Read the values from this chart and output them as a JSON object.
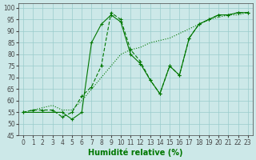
{
  "series1": {
    "x": [
      0,
      1,
      2,
      3,
      4,
      5,
      6,
      7,
      8,
      9,
      10,
      11,
      12,
      13,
      14,
      15,
      16,
      17,
      18,
      19,
      20,
      21,
      22,
      23
    ],
    "y": [
      55,
      56,
      56,
      56,
      53,
      55,
      62,
      66,
      75,
      98,
      95,
      82,
      77,
      69,
      63,
      75,
      71,
      87,
      93,
      95,
      97,
      97,
      98,
      98
    ],
    "color": "#007700",
    "linestyle": "--",
    "marker": "+"
  },
  "series2": {
    "x": [
      0,
      1,
      2,
      3,
      4,
      5,
      6,
      7,
      8,
      9,
      10,
      11,
      12,
      13,
      14,
      15,
      16,
      17,
      18,
      19,
      20,
      21,
      22,
      23
    ],
    "y": [
      55,
      56,
      57,
      58,
      56,
      56,
      60,
      65,
      70,
      75,
      80,
      82,
      83,
      85,
      86,
      87,
      89,
      91,
      93,
      95,
      96,
      97,
      97,
      98
    ],
    "color": "#007700",
    "linestyle": ":",
    "marker": null
  },
  "series3": {
    "x": [
      0,
      4,
      5,
      6,
      7,
      8,
      9,
      10,
      11,
      12,
      13,
      14,
      15,
      16,
      17,
      18,
      19,
      20,
      21,
      22,
      23
    ],
    "y": [
      55,
      55,
      52,
      55,
      85,
      93,
      97,
      94,
      80,
      76,
      69,
      63,
      75,
      71,
      87,
      93,
      95,
      97,
      97,
      98,
      98
    ],
    "color": "#007700",
    "linestyle": "-",
    "marker": "+"
  },
  "xlabel": "Humidité relative (%)",
  "xlim": [
    -0.5,
    23.5
  ],
  "ylim": [
    45,
    102
  ],
  "yticks": [
    45,
    50,
    55,
    60,
    65,
    70,
    75,
    80,
    85,
    90,
    95,
    100
  ],
  "xticks": [
    0,
    1,
    2,
    3,
    4,
    5,
    6,
    7,
    8,
    9,
    10,
    11,
    12,
    13,
    14,
    15,
    16,
    17,
    18,
    19,
    20,
    21,
    22,
    23
  ],
  "bg_color": "#cce8e8",
  "grid_color": "#99cccc",
  "line_color": "#007700",
  "axis_color": "#444444",
  "label_color": "#007700",
  "tick_fontsize": 5.5,
  "xlabel_fontsize": 7
}
